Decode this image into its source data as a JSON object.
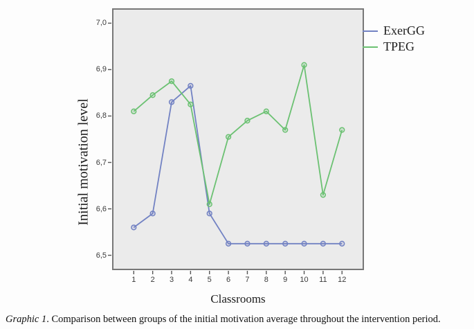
{
  "chart_data": {
    "type": "line",
    "title": "",
    "xlabel": "Classrooms",
    "ylabel": "Initial motivation level",
    "categories": [
      "1",
      "2",
      "3",
      "4",
      "5",
      "6",
      "7",
      "8",
      "9",
      "10",
      "11",
      "12"
    ],
    "series": [
      {
        "name": "ExerGG",
        "color": "#7282c3",
        "values": [
          6.56,
          6.59,
          6.83,
          6.865,
          6.59,
          6.525,
          6.525,
          6.525,
          6.525,
          6.525,
          6.525,
          6.525
        ]
      },
      {
        "name": "TPEG",
        "color": "#6bc172",
        "values": [
          6.81,
          6.845,
          6.875,
          6.825,
          6.61,
          6.755,
          6.79,
          6.81,
          6.77,
          6.91,
          6.63,
          6.77
        ]
      }
    ],
    "y_tick_labels": [
      "7,0",
      "6,9",
      "6,8",
      "6,7",
      "6,6",
      "6,5"
    ],
    "y_tick_values": [
      7.0,
      6.9,
      6.8,
      6.7,
      6.6,
      6.5
    ],
    "ylim": [
      6.468,
      7.032
    ],
    "grid": "off",
    "legend_position": "top-right-outside",
    "plot_background": "#ebebeb",
    "plot_border_color": "#777777",
    "marker": "open-circle"
  },
  "caption": {
    "label": "Graphic 1",
    "text": ". Comparison between groups of the initial motivation average throughout the intervention period."
  }
}
